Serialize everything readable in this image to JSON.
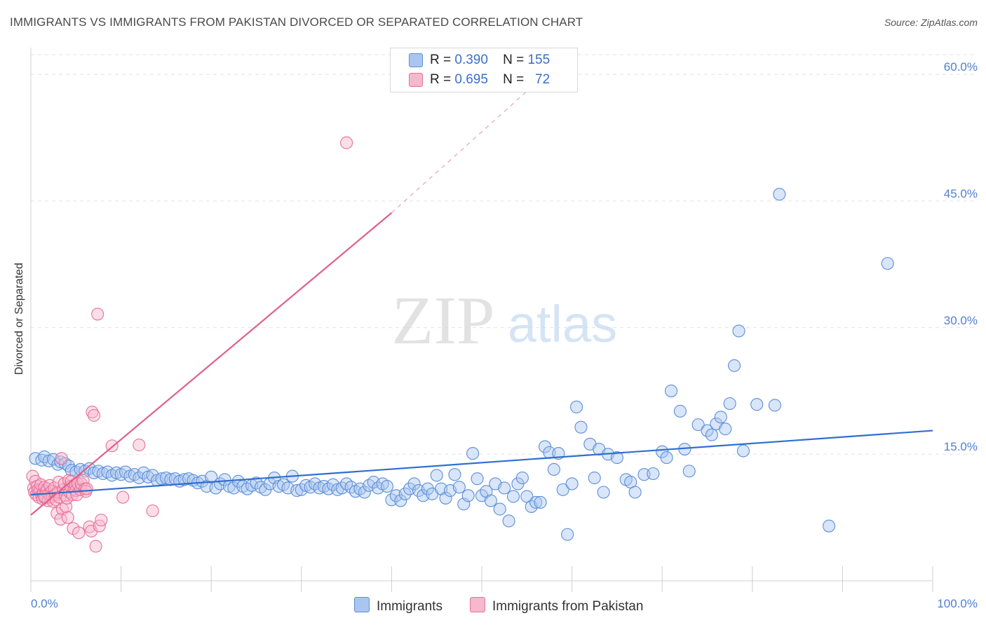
{
  "title": "IMMIGRANTS VS IMMIGRANTS FROM PAKISTAN DIVORCED OR SEPARATED CORRELATION CHART",
  "source": "Source: ZipAtlas.com",
  "watermark": {
    "zip": "ZIP",
    "atlas": "atlas"
  },
  "colors": {
    "immigrants": "#5b8fd8",
    "immigrants_fill": "#aac6f0",
    "pakistan": "#e8709a",
    "pakistan_fill": "#f6b8cc",
    "axis_text": "#4f7fcf",
    "grid": "#e2e2e2"
  },
  "legend": {
    "rows": [
      {
        "r_label": "R =",
        "r_value": "0.390",
        "n_label": "N =",
        "n_value": "155"
      },
      {
        "r_label": "R =",
        "r_value": "0.695",
        "n_label": "N =",
        "n_value": "72"
      }
    ]
  },
  "bottom_legend": [
    "Immigrants",
    "Immigrants from Pakistan"
  ],
  "chart_data": {
    "type": "scatter",
    "title": "IMMIGRANTS VS IMMIGRANTS FROM PAKISTAN DIVORCED OR SEPARATED CORRELATION CHART",
    "xlabel": "",
    "ylabel": "Divorced or Separated",
    "xlim": [
      0,
      100
    ],
    "ylim": [
      0,
      63
    ],
    "x_tick_labels": [
      "0.0%",
      "100.0%"
    ],
    "y_ticks": [
      15,
      30,
      45,
      60
    ],
    "y_tick_labels": [
      "15.0%",
      "30.0%",
      "45.0%",
      "60.0%"
    ],
    "grid": true,
    "legend_position": "top-center",
    "series": [
      {
        "name": "Immigrants",
        "R": 0.39,
        "N": 155,
        "trend": {
          "x0": 0,
          "y0": 10.2,
          "x1": 100,
          "y1": 17.8
        },
        "points": [
          [
            0.5,
            14.5
          ],
          [
            1.2,
            14.3
          ],
          [
            1.5,
            14.7
          ],
          [
            2,
            14.2
          ],
          [
            2.5,
            14.4
          ],
          [
            3,
            13.8
          ],
          [
            3.3,
            14.1
          ],
          [
            3.8,
            13.9
          ],
          [
            4.2,
            13.6
          ],
          [
            4.5,
            13.1
          ],
          [
            5,
            12.9
          ],
          [
            5.5,
            13.2
          ],
          [
            6,
            13
          ],
          [
            6.5,
            13.3
          ],
          [
            7,
            12.8
          ],
          [
            7.5,
            13
          ],
          [
            8,
            12.7
          ],
          [
            8.5,
            12.9
          ],
          [
            9,
            12.5
          ],
          [
            9.5,
            12.8
          ],
          [
            10,
            12.6
          ],
          [
            10.5,
            12.9
          ],
          [
            11,
            12.4
          ],
          [
            11.5,
            12.6
          ],
          [
            12,
            12.2
          ],
          [
            12.5,
            12.8
          ],
          [
            13,
            12.3
          ],
          [
            13.5,
            12.5
          ],
          [
            14,
            11.9
          ],
          [
            14.5,
            12.1
          ],
          [
            15,
            12.2
          ],
          [
            15.5,
            12
          ],
          [
            16,
            12.1
          ],
          [
            16.5,
            11.8
          ],
          [
            17,
            12
          ],
          [
            17.5,
            12.1
          ],
          [
            18,
            11.9
          ],
          [
            18.5,
            11.6
          ],
          [
            19,
            11.8
          ],
          [
            19.5,
            11.2
          ],
          [
            20,
            12.3
          ],
          [
            20.5,
            11
          ],
          [
            21,
            11.5
          ],
          [
            21.5,
            12
          ],
          [
            22,
            11.2
          ],
          [
            22.5,
            11
          ],
          [
            23,
            11.8
          ],
          [
            23.5,
            11.2
          ],
          [
            24,
            10.9
          ],
          [
            24.5,
            11.3
          ],
          [
            25,
            11.6
          ],
          [
            25.5,
            11.1
          ],
          [
            26,
            10.8
          ],
          [
            26.5,
            11.5
          ],
          [
            27,
            12.2
          ],
          [
            27.5,
            11.2
          ],
          [
            28,
            11.4
          ],
          [
            28.5,
            11
          ],
          [
            29,
            12.4
          ],
          [
            29.5,
            10.7
          ],
          [
            30,
            10.8
          ],
          [
            30.5,
            11.3
          ],
          [
            31,
            11.1
          ],
          [
            31.5,
            11.5
          ],
          [
            32,
            11
          ],
          [
            32.5,
            11.2
          ],
          [
            33,
            10.9
          ],
          [
            33.5,
            11.4
          ],
          [
            34,
            10.8
          ],
          [
            34.5,
            11
          ],
          [
            35,
            11.5
          ],
          [
            35.5,
            11.1
          ],
          [
            36,
            10.6
          ],
          [
            36.5,
            10.9
          ],
          [
            37,
            10.5
          ],
          [
            37.5,
            11.3
          ],
          [
            38,
            11.7
          ],
          [
            38.5,
            11
          ],
          [
            39,
            11.5
          ],
          [
            39.5,
            11.2
          ],
          [
            40,
            9.6
          ],
          [
            40.5,
            10.1
          ],
          [
            41,
            9.5
          ],
          [
            41.5,
            10.3
          ],
          [
            42,
            10.9
          ],
          [
            42.5,
            11.5
          ],
          [
            43,
            10.7
          ],
          [
            43.5,
            10.1
          ],
          [
            44,
            10.9
          ],
          [
            44.5,
            10.3
          ],
          [
            45,
            12.5
          ],
          [
            45.5,
            10.9
          ],
          [
            46,
            9.8
          ],
          [
            46.5,
            10.7
          ],
          [
            47,
            12.6
          ],
          [
            47.5,
            11.1
          ],
          [
            48,
            9.1
          ],
          [
            48.5,
            10.1
          ],
          [
            49,
            15.1
          ],
          [
            49.5,
            12.1
          ],
          [
            50,
            10.1
          ],
          [
            50.5,
            10.6
          ],
          [
            51,
            9.5
          ],
          [
            51.5,
            11.5
          ],
          [
            52,
            8.5
          ],
          [
            52.5,
            11
          ],
          [
            53,
            7.1
          ],
          [
            53.5,
            10
          ],
          [
            54,
            11.5
          ],
          [
            54.5,
            12.2
          ],
          [
            55,
            10
          ],
          [
            55.5,
            8.8
          ],
          [
            56,
            9.3
          ],
          [
            56.5,
            9.3
          ],
          [
            57,
            15.9
          ],
          [
            57.5,
            15.2
          ],
          [
            58,
            13.2
          ],
          [
            58.5,
            15.1
          ],
          [
            59,
            10.8
          ],
          [
            59.5,
            5.5
          ],
          [
            60,
            11.5
          ],
          [
            60.5,
            20.6
          ],
          [
            61,
            18.2
          ],
          [
            62,
            16.2
          ],
          [
            62.5,
            12.2
          ],
          [
            63,
            15.6
          ],
          [
            63.5,
            10.5
          ],
          [
            64,
            15
          ],
          [
            65,
            14.6
          ],
          [
            66,
            12
          ],
          [
            66.5,
            11.7
          ],
          [
            67,
            10.5
          ],
          [
            68,
            12.6
          ],
          [
            69,
            12.7
          ],
          [
            70,
            15.3
          ],
          [
            70.5,
            14.6
          ],
          [
            71,
            22.5
          ],
          [
            72,
            20.1
          ],
          [
            72.5,
            15.6
          ],
          [
            73,
            13
          ],
          [
            74,
            18.5
          ],
          [
            75,
            17.8
          ],
          [
            75.5,
            17.3
          ],
          [
            76,
            18.6
          ],
          [
            76.5,
            19.4
          ],
          [
            77,
            18
          ],
          [
            77.5,
            21
          ],
          [
            78,
            25.5
          ],
          [
            78.5,
            29.6
          ],
          [
            79,
            15.4
          ],
          [
            80.5,
            20.9
          ],
          [
            82.5,
            20.8
          ],
          [
            83,
            45.8
          ],
          [
            88.5,
            6.5
          ],
          [
            95,
            37.6
          ]
        ]
      },
      {
        "name": "Immigrants from Pakistan",
        "R": 0.695,
        "N": 72,
        "trend": {
          "x0": 0,
          "y0": 7.8,
          "x1": 40,
          "y1": 43.6
        },
        "trend_dashed": {
          "x0": 40,
          "y0": 43.6,
          "x1": 55,
          "y1": 58
        },
        "points": [
          [
            0.2,
            12.4
          ],
          [
            0.3,
            11
          ],
          [
            0.4,
            10.5
          ],
          [
            0.5,
            11.8
          ],
          [
            0.6,
            10.2
          ],
          [
            0.7,
            11.2
          ],
          [
            0.8,
            10.8
          ],
          [
            0.9,
            9.9
          ],
          [
            1,
            10.7
          ],
          [
            1.1,
            11.4
          ],
          [
            1.2,
            10.1
          ],
          [
            1.3,
            9.7
          ],
          [
            1.4,
            10.4
          ],
          [
            1.5,
            11.1
          ],
          [
            1.6,
            9.8
          ],
          [
            1.7,
            10.6
          ],
          [
            1.8,
            10.9
          ],
          [
            1.9,
            9.5
          ],
          [
            2,
            10.3
          ],
          [
            2.1,
            11.3
          ],
          [
            2.2,
            9.9
          ],
          [
            2.3,
            10.6
          ],
          [
            2.4,
            10
          ],
          [
            2.5,
            9.4
          ],
          [
            2.6,
            11
          ],
          [
            2.7,
            10.2
          ],
          [
            2.8,
            9.6
          ],
          [
            2.9,
            8
          ],
          [
            3,
            10.5
          ],
          [
            3.1,
            11.7
          ],
          [
            3.2,
            9.9
          ],
          [
            3.3,
            7.3
          ],
          [
            3.4,
            14.5
          ],
          [
            3.5,
            8.5
          ],
          [
            3.6,
            10.8
          ],
          [
            3.7,
            11.5
          ],
          [
            3.8,
            10.1
          ],
          [
            3.9,
            8.8
          ],
          [
            4,
            9.8
          ],
          [
            4.1,
            7.5
          ],
          [
            4.2,
            11.9
          ],
          [
            4.3,
            10.5
          ],
          [
            4.4,
            11.2
          ],
          [
            4.5,
            11.8
          ],
          [
            4.6,
            10.2
          ],
          [
            4.7,
            6.2
          ],
          [
            4.8,
            10.9
          ],
          [
            4.9,
            11.4
          ],
          [
            5,
            10.7
          ],
          [
            5.1,
            10.2
          ],
          [
            5.2,
            11.5
          ],
          [
            5.3,
            5.7
          ],
          [
            5.5,
            10.8
          ],
          [
            5.6,
            11.5
          ],
          [
            5.8,
            11.9
          ],
          [
            6,
            10.9
          ],
          [
            6.1,
            10.6
          ],
          [
            6.2,
            10.9
          ],
          [
            6.5,
            6.4
          ],
          [
            6.7,
            5.9
          ],
          [
            6.8,
            20
          ],
          [
            7,
            19.6
          ],
          [
            7.2,
            4.1
          ],
          [
            7.4,
            31.6
          ],
          [
            7.6,
            6.5
          ],
          [
            7.8,
            7.2
          ],
          [
            9,
            16
          ],
          [
            10.2,
            9.9
          ],
          [
            12,
            16.1
          ],
          [
            13.5,
            8.3
          ],
          [
            35,
            51.9
          ],
          [
            1.5,
            10
          ]
        ]
      }
    ]
  }
}
